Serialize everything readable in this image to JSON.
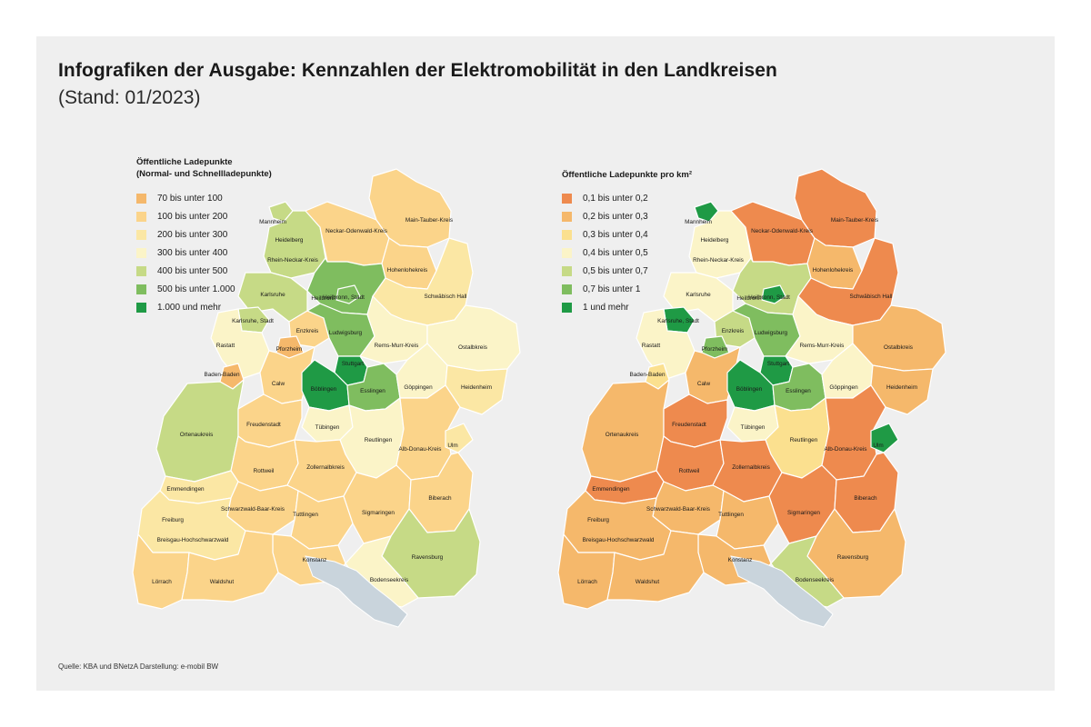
{
  "title": "Infografiken der Ausgabe: Kennzahlen der Elektromobilität in den Landkreisen",
  "subtitle": "(Stand: 01/2023)",
  "source": "Quelle: KBA und BNetzA Darstellung: e-mobil BW",
  "colors": {
    "background": "#efefef",
    "lake": "#c9d4dc",
    "scale": [
      "#ee8a4e",
      "#f5b86b",
      "#fbe08f",
      "#fbf4c8",
      "#c6da86",
      "#7fbd5f",
      "#1f9a45"
    ]
  },
  "maps": [
    {
      "legend_title_lines": [
        "Öffentliche Ladepunkte",
        "(Normal- und Schnellladepunkte)"
      ],
      "legend": [
        {
          "label": "70 bis unter 100",
          "color": "#f5b86b"
        },
        {
          "label": "100 bis unter 200",
          "color": "#fbd48a"
        },
        {
          "label": "200 bis unter 300",
          "color": "#fbe7a4"
        },
        {
          "label": "300 bis unter 400",
          "color": "#fbf4c8"
        },
        {
          "label": "400 bis unter 500",
          "color": "#c6da86"
        },
        {
          "label": "500 bis unter 1.000",
          "color": "#7fbd5f"
        },
        {
          "label": "1.000 und mehr",
          "color": "#1f9a45"
        }
      ],
      "districts": [
        {
          "name": "Mannheim",
          "class": 4
        },
        {
          "name": "Heidelberg",
          "class": 4
        },
        {
          "name": "Rhein-Neckar-Kreis",
          "class": 4
        },
        {
          "name": "Neckar-Odenwald-Kreis",
          "class": 1
        },
        {
          "name": "Main-Tauber-Kreis",
          "class": 1
        },
        {
          "name": "Hohenlohekreis",
          "class": 1
        },
        {
          "name": "Heilbronn",
          "class": 5
        },
        {
          "name": "Heilbronn, Stadt",
          "class": 5
        },
        {
          "name": "Schwäbisch Hall",
          "class": 2
        },
        {
          "name": "Karlsruhe",
          "class": 4
        },
        {
          "name": "Karlsruhe, Stadt",
          "class": 4
        },
        {
          "name": "Enzkreis",
          "class": 1
        },
        {
          "name": "Pforzheim",
          "class": 0
        },
        {
          "name": "Ludwigsburg",
          "class": 5
        },
        {
          "name": "Rems-Murr-Kreis",
          "class": 3
        },
        {
          "name": "Ostalbkreis",
          "class": 3
        },
        {
          "name": "Rastatt",
          "class": 3
        },
        {
          "name": "Baden-Baden",
          "class": 0
        },
        {
          "name": "Calw",
          "class": 1
        },
        {
          "name": "Stuttgart",
          "class": 6
        },
        {
          "name": "Böblingen",
          "class": 6
        },
        {
          "name": "Esslingen",
          "class": 5
        },
        {
          "name": "Göppingen",
          "class": 3
        },
        {
          "name": "Heidenheim",
          "class": 2
        },
        {
          "name": "Ortenaukreis",
          "class": 4
        },
        {
          "name": "Freudenstadt",
          "class": 1
        },
        {
          "name": "Tübingen",
          "class": 3
        },
        {
          "name": "Reutlingen",
          "class": 3
        },
        {
          "name": "Alb-Donau-Kreis",
          "class": 1
        },
        {
          "name": "Ulm",
          "class": 2
        },
        {
          "name": "Rottweil",
          "class": 1
        },
        {
          "name": "Zollernalbkreis",
          "class": 1
        },
        {
          "name": "Emmendingen",
          "class": 2
        },
        {
          "name": "Schwarzwald-Baar-Kreis",
          "class": 1
        },
        {
          "name": "Tuttlingen",
          "class": 1
        },
        {
          "name": "Sigmaringen",
          "class": 1
        },
        {
          "name": "Biberach",
          "class": 1
        },
        {
          "name": "Freiburg",
          "class": 3
        },
        {
          "name": "Breisgau-Hochschwarzwald",
          "class": 2
        },
        {
          "name": "Konstanz",
          "class": 1
        },
        {
          "name": "Ravensburg",
          "class": 4
        },
        {
          "name": "Bodenseekreis",
          "class": 3
        },
        {
          "name": "Lörrach",
          "class": 1
        },
        {
          "name": "Waldshut",
          "class": 1
        }
      ]
    },
    {
      "legend_title_lines": [
        "Öffentliche Ladepunkte pro km²"
      ],
      "legend": [
        {
          "label": "0,1 bis unter 0,2",
          "color": "#ee8a4e"
        },
        {
          "label": "0,2 bis unter 0,3",
          "color": "#f5b86b"
        },
        {
          "label": "0,3 bis unter 0,4",
          "color": "#fbe08f"
        },
        {
          "label": "0,4 bis unter 0,5",
          "color": "#fbf4c8"
        },
        {
          "label": "0,5 bis unter 0,7",
          "color": "#c6da86"
        },
        {
          "label": "0,7 bis unter 1",
          "color": "#7fbd5f"
        },
        {
          "label": "1 und mehr",
          "color": "#1f9a45"
        }
      ],
      "districts": [
        {
          "name": "Mannheim",
          "class": 6
        },
        {
          "name": "Heidelberg",
          "class": 6
        },
        {
          "name": "Rhein-Neckar-Kreis",
          "class": 3
        },
        {
          "name": "Neckar-Odenwald-Kreis",
          "class": 0
        },
        {
          "name": "Main-Tauber-Kreis",
          "class": 0
        },
        {
          "name": "Hohenlohekreis",
          "class": 1
        },
        {
          "name": "Heilbronn",
          "class": 4
        },
        {
          "name": "Heilbronn, Stadt",
          "class": 6
        },
        {
          "name": "Schwäbisch Hall",
          "class": 0
        },
        {
          "name": "Karlsruhe",
          "class": 3
        },
        {
          "name": "Karlsruhe, Stadt",
          "class": 6
        },
        {
          "name": "Enzkreis",
          "class": 4
        },
        {
          "name": "Pforzheim",
          "class": 5
        },
        {
          "name": "Ludwigsburg",
          "class": 5
        },
        {
          "name": "Rems-Murr-Kreis",
          "class": 3
        },
        {
          "name": "Ostalbkreis",
          "class": 1
        },
        {
          "name": "Rastatt",
          "class": 3
        },
        {
          "name": "Baden-Baden",
          "class": 2
        },
        {
          "name": "Calw",
          "class": 1
        },
        {
          "name": "Stuttgart",
          "class": 6
        },
        {
          "name": "Böblingen",
          "class": 6
        },
        {
          "name": "Esslingen",
          "class": 5
        },
        {
          "name": "Göppingen",
          "class": 3
        },
        {
          "name": "Heidenheim",
          "class": 1
        },
        {
          "name": "Ortenaukreis",
          "class": 1
        },
        {
          "name": "Freudenstadt",
          "class": 0
        },
        {
          "name": "Tübingen",
          "class": 3
        },
        {
          "name": "Reutlingen",
          "class": 2
        },
        {
          "name": "Alb-Donau-Kreis",
          "class": 0
        },
        {
          "name": "Ulm",
          "class": 6
        },
        {
          "name": "Rottweil",
          "class": 0
        },
        {
          "name": "Zollernalbkreis",
          "class": 0
        },
        {
          "name": "Emmendingen",
          "class": 0
        },
        {
          "name": "Schwarzwald-Baar-Kreis",
          "class": 1
        },
        {
          "name": "Tuttlingen",
          "class": 1
        },
        {
          "name": "Sigmaringen",
          "class": 0
        },
        {
          "name": "Biberach",
          "class": 0
        },
        {
          "name": "Freiburg",
          "class": 6
        },
        {
          "name": "Breisgau-Hochschwarzwald",
          "class": 1
        },
        {
          "name": "Konstanz",
          "class": 1
        },
        {
          "name": "Ravensburg",
          "class": 1
        },
        {
          "name": "Bodenseekreis",
          "class": 4
        },
        {
          "name": "Lörrach",
          "class": 1
        },
        {
          "name": "Waldshut",
          "class": 1
        }
      ]
    }
  ]
}
